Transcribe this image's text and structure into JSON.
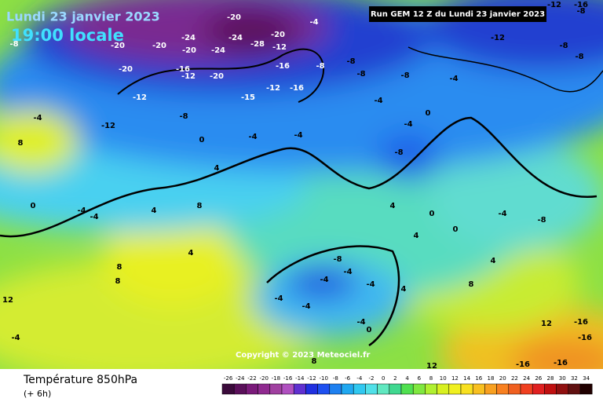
{
  "header": {
    "date": "Lundi 23 janvier 2023",
    "time": "19:00 locale",
    "run": "Run GEM 12 Z du Lundi 23 janvier 2023"
  },
  "copyright": "Copyright © 2023 Meteociel.fr",
  "footer": {
    "title": "Température 850hPa",
    "step": "(+ 6h)"
  },
  "legend": {
    "values": [
      -26,
      -24,
      -22,
      -20,
      -18,
      -16,
      -14,
      -12,
      -10,
      -8,
      -6,
      -4,
      -2,
      0,
      2,
      4,
      6,
      8,
      10,
      12,
      14,
      16,
      18,
      20,
      22,
      24,
      26,
      28,
      30,
      32,
      34
    ],
    "colors": [
      "#3a0a3a",
      "#5a105a",
      "#7a1a7a",
      "#902a90",
      "#a040a0",
      "#b050c0",
      "#6030d0",
      "#2030e0",
      "#1e50f0",
      "#1e80f0",
      "#20a8f0",
      "#30c8f0",
      "#50e0e8",
      "#60e8c0",
      "#40d890",
      "#50e050",
      "#80e840",
      "#b0f030",
      "#d8f020",
      "#f0f020",
      "#f8e020",
      "#f8c020",
      "#f8a020",
      "#f88020",
      "#f06020",
      "#f04020",
      "#e02020",
      "#c01010",
      "#901010",
      "#601010",
      "#200000"
    ]
  },
  "map_labels": [
    -8,
    -20,
    -20,
    -24,
    -20,
    -24,
    -24,
    -28,
    -20,
    -12,
    -20,
    -20,
    -16,
    -12,
    -20,
    -15,
    -12,
    -16,
    -16,
    -8,
    -8,
    -8,
    -4,
    -12,
    -12,
    -8,
    -4,
    8,
    0,
    -4,
    -4,
    -4,
    -8,
    -4,
    -12,
    -8,
    -8,
    -4,
    -8,
    0,
    4,
    4,
    -4,
    -4,
    0,
    8,
    4,
    8,
    8,
    12,
    -4,
    -4,
    -4,
    -4,
    -4,
    -4,
    -4,
    -8,
    4,
    0,
    4,
    0,
    8,
    4,
    -4,
    -8,
    12,
    -16,
    -16,
    -16,
    -16,
    12,
    8,
    0,
    4,
    -12,
    -16,
    -8
  ]
}
